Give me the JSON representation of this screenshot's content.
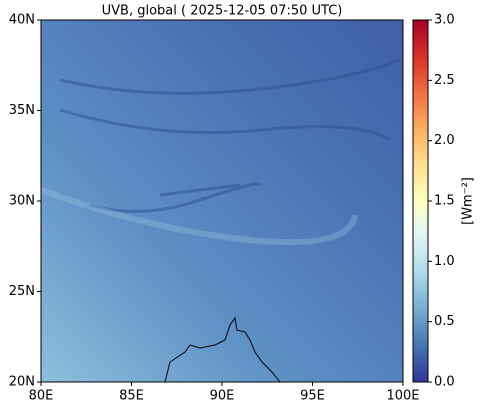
{
  "map": {
    "title": "UVB, global ( 2025-12-05 07:50 UTC)",
    "xlim": [
      80,
      100
    ],
    "ylim": [
      20,
      40
    ],
    "xticks": [
      {
        "value": 80,
        "label": "80E"
      },
      {
        "value": 85,
        "label": "85E"
      },
      {
        "value": 90,
        "label": "90E"
      },
      {
        "value": 95,
        "label": "95E"
      },
      {
        "value": 100,
        "label": "100E"
      }
    ],
    "yticks": [
      {
        "value": 20,
        "label": "20N"
      },
      {
        "value": 25,
        "label": "25N"
      },
      {
        "value": 30,
        "label": "30N"
      },
      {
        "value": 35,
        "label": "35N"
      },
      {
        "value": 40,
        "label": "40N"
      }
    ]
  },
  "colorbar": {
    "label": "[Wm⁻²]",
    "lim": [
      0,
      3
    ],
    "ticks": [
      {
        "value": 0,
        "label": "0.0"
      },
      0.5,
      {
        "value": 1,
        "label": "1.0"
      },
      1.5,
      {
        "value": 2,
        "label": "2.0"
      },
      2.5,
      {
        "value": 3,
        "label": "3.0"
      }
    ]
  }
}
